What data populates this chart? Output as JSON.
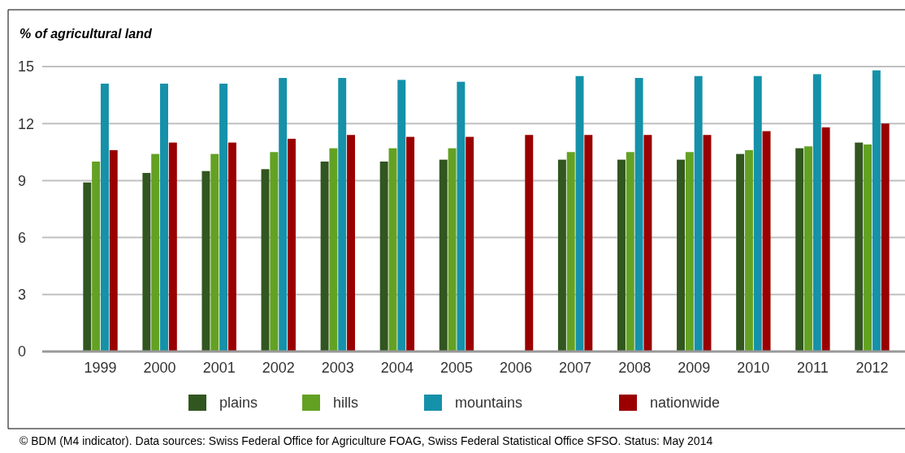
{
  "chart_data": {
    "type": "bar",
    "ylabel": "% of agricultural land",
    "categories": [
      "1999",
      "2000",
      "2001",
      "2002",
      "2003",
      "2004",
      "2005",
      "2006",
      "2007",
      "2008",
      "2009",
      "2010",
      "2011",
      "2012"
    ],
    "series": [
      {
        "name": "plains",
        "color": "#31561f",
        "values": [
          8.9,
          9.4,
          9.5,
          9.6,
          10.0,
          10.0,
          10.1,
          null,
          10.1,
          10.1,
          10.1,
          10.4,
          10.7,
          11.0
        ]
      },
      {
        "name": "hills",
        "color": "#63a123",
        "values": [
          10.0,
          10.4,
          10.4,
          10.5,
          10.7,
          10.7,
          10.7,
          null,
          10.5,
          10.5,
          10.5,
          10.6,
          10.8,
          10.9
        ]
      },
      {
        "name": "mountains",
        "color": "#1591a9",
        "values": [
          14.1,
          14.1,
          14.1,
          14.4,
          14.4,
          14.3,
          14.2,
          null,
          14.5,
          14.4,
          14.5,
          14.5,
          14.6,
          14.8
        ]
      },
      {
        "name": "nationwide",
        "color": "#9a0000",
        "values": [
          10.6,
          11.0,
          11.0,
          11.2,
          11.4,
          11.3,
          11.3,
          11.4,
          11.4,
          11.4,
          11.4,
          11.6,
          11.8,
          12.0
        ]
      }
    ],
    "ylim": [
      0,
      15
    ],
    "yticks": [
      0,
      3,
      6,
      9,
      12,
      15
    ],
    "grid": "y",
    "legend": "bottom",
    "annotations": [
      "© BDM (M4 indicator). Data sources: Swiss Federal Office for Agriculture FOAG, Swiss Federal Statistical Office SFSO. Status: May 2014"
    ]
  }
}
